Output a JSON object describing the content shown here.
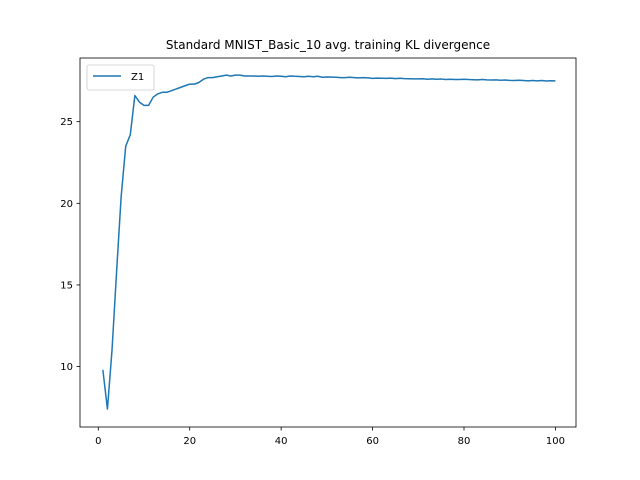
{
  "chart_data": {
    "type": "line",
    "title": "Standard MNIST_Basic_10 avg. training KL divergence",
    "xlabel": "",
    "ylabel": "",
    "xlim": [
      -4,
      104.5
    ],
    "ylim": [
      6.3,
      28.9
    ],
    "xticks": [
      0,
      20,
      40,
      60,
      80,
      100
    ],
    "yticks": [
      10,
      15,
      20,
      25
    ],
    "grid": false,
    "legend_position": "upper-left",
    "series": [
      {
        "name": "Z1",
        "color": "#1f77b4",
        "x": [
          1,
          2,
          3,
          4,
          5,
          6,
          7,
          8,
          9,
          10,
          11,
          12,
          13,
          14,
          15,
          16,
          17,
          18,
          19,
          20,
          21,
          22,
          23,
          24,
          25,
          26,
          27,
          28,
          29,
          30,
          31,
          32,
          33,
          34,
          35,
          36,
          37,
          38,
          39,
          40,
          41,
          42,
          43,
          44,
          45,
          46,
          47,
          48,
          49,
          50,
          51,
          52,
          53,
          54,
          55,
          56,
          57,
          58,
          59,
          60,
          61,
          62,
          63,
          64,
          65,
          66,
          67,
          68,
          69,
          70,
          71,
          72,
          73,
          74,
          75,
          76,
          77,
          78,
          79,
          80,
          81,
          82,
          83,
          84,
          85,
          86,
          87,
          88,
          89,
          90,
          91,
          92,
          93,
          94,
          95,
          96,
          97,
          98,
          99,
          100
        ],
        "y": [
          9.8,
          7.4,
          11.0,
          15.8,
          20.4,
          23.5,
          24.2,
          26.6,
          26.2,
          26.0,
          26.0,
          26.5,
          26.7,
          26.8,
          26.8,
          26.9,
          27.0,
          27.1,
          27.2,
          27.3,
          27.3,
          27.4,
          27.6,
          27.7,
          27.7,
          27.75,
          27.8,
          27.85,
          27.8,
          27.85,
          27.85,
          27.8,
          27.8,
          27.8,
          27.78,
          27.8,
          27.78,
          27.77,
          27.8,
          27.78,
          27.75,
          27.8,
          27.78,
          27.77,
          27.75,
          27.78,
          27.75,
          27.78,
          27.72,
          27.74,
          27.73,
          27.72,
          27.7,
          27.7,
          27.72,
          27.7,
          27.68,
          27.7,
          27.68,
          27.65,
          27.67,
          27.66,
          27.65,
          27.67,
          27.64,
          27.66,
          27.64,
          27.63,
          27.62,
          27.62,
          27.63,
          27.6,
          27.62,
          27.6,
          27.61,
          27.58,
          27.6,
          27.58,
          27.58,
          27.6,
          27.58,
          27.57,
          27.56,
          27.58,
          27.56,
          27.55,
          27.56,
          27.54,
          27.55,
          27.53,
          27.52,
          27.54,
          27.52,
          27.5,
          27.52,
          27.5,
          27.52,
          27.49,
          27.51,
          27.5
        ]
      }
    ]
  }
}
